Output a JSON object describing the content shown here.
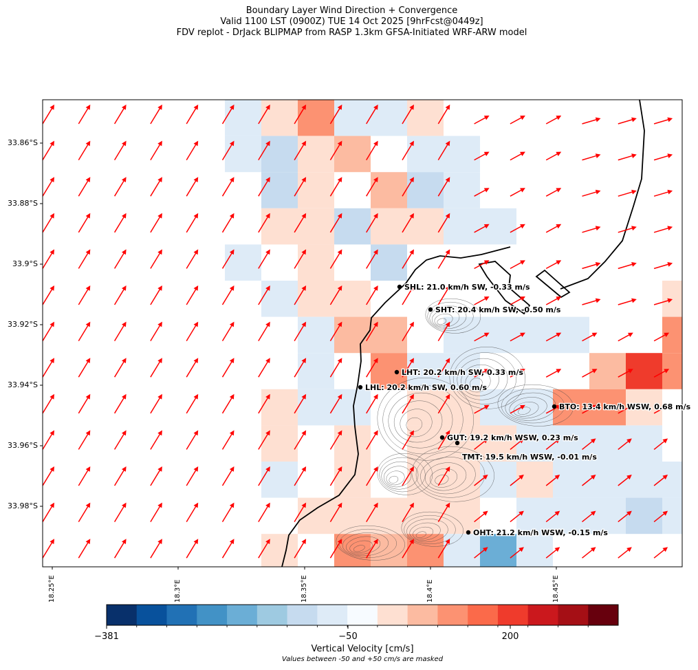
{
  "title": {
    "line1": "Boundary Layer Wind Direction + Convergence",
    "line2": "Valid 1100 LST (0900Z) TUE 14 Oct 2025 [9hrFcst@0449z]",
    "line3": "FDV replot - DrJack BLIPMAP from RASP 1.3km GFSA-Initiated WRF-ARW model"
  },
  "axes": {
    "lat_labels": [
      "33.86°S",
      "33.88°S",
      "33.9°S",
      "33.92°S",
      "33.94°S",
      "33.96°S",
      "33.98°S"
    ],
    "lon_labels": [
      "18.25°E",
      "18.3°E",
      "18.35°E",
      "18.4°E",
      "18.45°E"
    ]
  },
  "colorbar": {
    "label": "Vertical Velocity [cm/s]",
    "note": "Values between -50 and +50 cm/s are masked",
    "tick_labels": [
      "−381",
      "−50",
      "200"
    ],
    "colors": [
      "#08306b",
      "#08519c",
      "#2171b5",
      "#4292c6",
      "#6baed6",
      "#9ecae1",
      "#c6dbef",
      "#deebf7",
      "#f7fbff",
      "#fee0d2",
      "#fcbba1",
      "#fc9272",
      "#fb6a4a",
      "#ef3b2c",
      "#cb181d",
      "#a50f15",
      "#67000d"
    ]
  },
  "wind_arrow_color": "#ff0000",
  "stations": [
    {
      "label": "SHL: 21.0 km/h SW, -0.33 m/s"
    },
    {
      "label": "SHT: 20.4 km/h SW, -0.50 m/s"
    },
    {
      "label": "LHT: 20.2 km/h SW, 0.33 m/s"
    },
    {
      "label": "LHL: 20.2 km/h SW, 0.60 m/s"
    },
    {
      "label": "BTO: 13.4 km/h WSW, 0.68 m/s"
    },
    {
      "label": "GUT: 19.2 km/h WSW, 0.23 m/s"
    },
    {
      "label": "TMT: 19.5 km/h WSW, -0.01 m/s"
    },
    {
      "label": "OHT: 21.2 km/h WSW, -0.15 m/s"
    }
  ]
}
